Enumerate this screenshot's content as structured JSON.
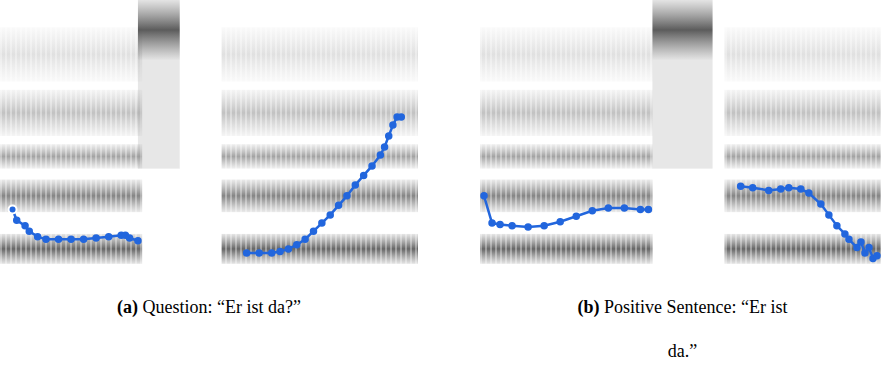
{
  "chart_data": [
    {
      "type": "line",
      "panel_label": "(a)",
      "title": "Question: “Er ist da?”",
      "x": [
        3,
        4,
        6,
        7,
        9,
        11,
        14,
        17,
        20,
        23,
        26,
        29,
        30,
        31,
        33,
        46,
        59,
        62,
        65,
        67,
        69,
        71,
        73,
        75,
        77,
        79,
        81,
        83,
        85,
        87,
        89,
        91,
        92,
        93,
        94,
        95,
        96
      ],
      "values": [
        23,
        19,
        17,
        15,
        13,
        12,
        12,
        12,
        12,
        12.5,
        13,
        13.5,
        13.5,
        12.5,
        11.5,
        null,
        7,
        7,
        7,
        7.5,
        8.5,
        10,
        12,
        15,
        18,
        21,
        24.5,
        28,
        32,
        35.5,
        39,
        43,
        46,
        50,
        54,
        57,
        57
      ],
      "color": "#2266dd",
      "marker": "circle",
      "xlim": [
        0,
        100
      ],
      "ylim": [
        0,
        100
      ],
      "tick_labels": false
    },
    {
      "type": "line",
      "panel_label": "(b)",
      "title": "Positive Sentence: “Er ist da.”",
      "x": [
        1,
        3,
        5,
        8,
        12,
        16,
        20,
        24,
        28,
        32,
        36,
        40,
        42,
        54,
        65,
        68,
        72,
        75,
        77,
        80,
        82,
        85,
        87,
        89,
        91,
        92,
        94,
        95,
        96,
        97,
        98,
        99
      ],
      "values": [
        28,
        18,
        17.5,
        17,
        16.5,
        17,
        18.5,
        20.5,
        22.5,
        23.5,
        23.5,
        23,
        23,
        null,
        31.5,
        31,
        30,
        30.5,
        31,
        30.5,
        29,
        25,
        21,
        17,
        14,
        12,
        9,
        11,
        7,
        9,
        5,
        6
      ],
      "color": "#2266dd",
      "marker": "circle",
      "xlim": [
        0,
        100
      ],
      "ylim": [
        0,
        100
      ],
      "tick_labels": false
    }
  ]
}
